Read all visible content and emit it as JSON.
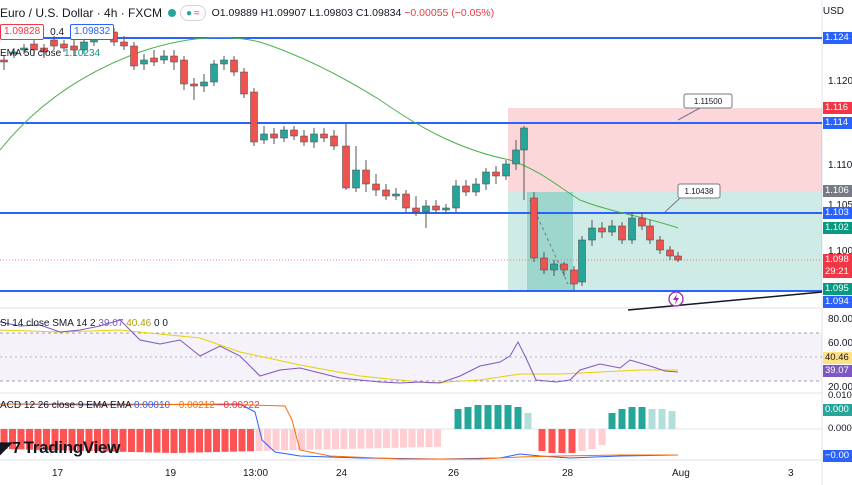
{
  "header": {
    "symbol": "Euro / U.S. Dollar · 4h · FXCM",
    "ohlc_o": "O1.09889",
    "ohlc_h": "H1.09907",
    "ohlc_l": "L1.09803",
    "ohlc_c": "C1.09834",
    "ohlc_chg": "−0.00055 (−0.05%)",
    "sell_price": "1.09828",
    "spread": "0.4",
    "buy_price": "1.09832"
  },
  "ema_legend": {
    "label": "EMA 50 close",
    "value": "1.10234"
  },
  "currency": "USD",
  "price_axis": {
    "ticks": [
      "1.120",
      "1.110",
      "1.105",
      "1.100"
    ],
    "badges": [
      {
        "text": "1.124",
        "color": "#2962ff"
      },
      {
        "text": "1.116",
        "color": "#f23645"
      },
      {
        "text": "1.114",
        "color": "#2962ff"
      },
      {
        "text": "1.106",
        "color": "#787b86"
      },
      {
        "text": "1.103",
        "color": "#2962ff"
      },
      {
        "text": "1.102",
        "color": "#089981"
      },
      {
        "text": "1.098",
        "color": "#f23645"
      },
      {
        "text": "29:21",
        "color": "#f23645"
      },
      {
        "text": "1.095",
        "color": "#089981"
      },
      {
        "text": "1.094",
        "color": "#2962ff"
      }
    ]
  },
  "callouts": {
    "target": "1.11500",
    "entry": "1.10438"
  },
  "rsi": {
    "label": "SI 14 close SMA 14 2",
    "v1": "39.07",
    "v2": "40.46",
    "v3": "0",
    "v4": "0",
    "axis": [
      "80.00",
      "60.00",
      "20.00"
    ],
    "badge1": "40.46",
    "badge2": "39.07"
  },
  "macd": {
    "label": "ACD 12 26 close 9 EMA EMA",
    "v1": "0.00010",
    "v2": "−0.00212",
    "v3": "−0.00222",
    "axis": [
      "0.010",
      "0.000",
      "0.000",
      "−0.00"
    ]
  },
  "time_axis": [
    "17",
    "19",
    "13:00",
    "24",
    "26",
    "28",
    "Aug",
    "3"
  ],
  "brand": "TradingView",
  "colors": {
    "bull": "#26a69a",
    "bear": "#ef5350",
    "line": "#2962ff",
    "ema": "#4caf50"
  }
}
